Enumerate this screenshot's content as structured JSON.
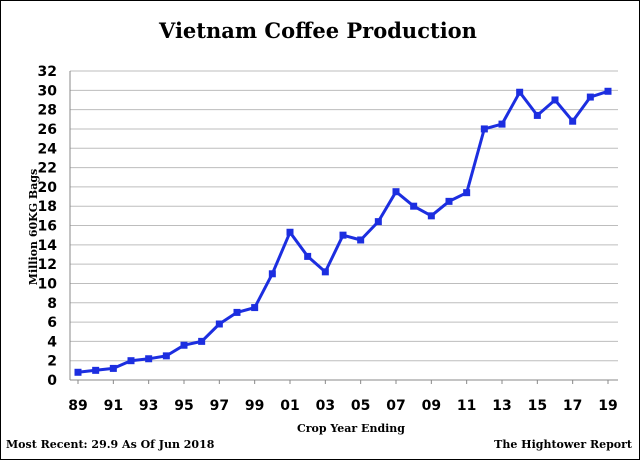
{
  "chart_data": {
    "type": "line",
    "title": "Vietnam Coffee Production",
    "xlabel": "Crop Year Ending",
    "ylabel": "Million 60KG Bags",
    "ylim": [
      0,
      32
    ],
    "yticks": [
      "0",
      "2",
      "4",
      "6",
      "8",
      "10",
      "12",
      "14",
      "16",
      "18",
      "20",
      "22",
      "24",
      "26",
      "28",
      "30",
      "32"
    ],
    "xticks": [
      "89",
      "91",
      "93",
      "95",
      "97",
      "99",
      "01",
      "03",
      "05",
      "07",
      "09",
      "11",
      "13",
      "15",
      "17",
      "19"
    ],
    "grid": true,
    "series": [
      {
        "color": "#1c2ee0",
        "x": [
          "1989",
          "1990",
          "1991",
          "1992",
          "1993",
          "1994",
          "1995",
          "1996",
          "1997",
          "1998",
          "1999",
          "2000",
          "2001",
          "2002",
          "2003",
          "2004",
          "2005",
          "2006",
          "2007",
          "2008",
          "2009",
          "2010",
          "2011",
          "2012",
          "2013",
          "2014",
          "2015",
          "2016",
          "2017",
          "2018",
          "2019"
        ],
        "values": [
          0.8,
          1.0,
          1.2,
          2.0,
          2.2,
          2.5,
          3.6,
          4.0,
          5.8,
          7.0,
          7.5,
          11.0,
          15.3,
          12.8,
          11.2,
          15.0,
          14.5,
          16.4,
          19.5,
          18.0,
          17.0,
          18.5,
          19.4,
          26.0,
          26.5,
          29.8,
          27.4,
          29.0,
          26.8,
          29.3,
          29.9
        ]
      }
    ]
  },
  "footer": {
    "left": "Most Recent: 29.9 As Of Jun 2018",
    "right": "The Hightower Report"
  }
}
